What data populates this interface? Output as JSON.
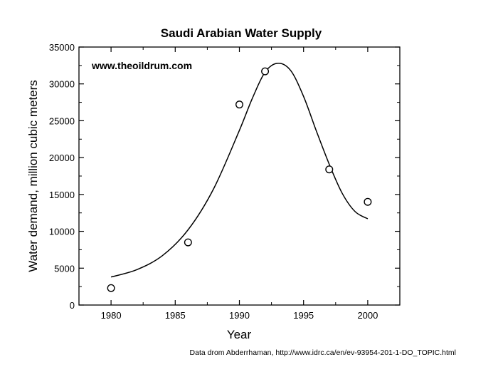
{
  "chart_data": {
    "type": "scatter",
    "title": "Saudi Arabian Water Supply",
    "xlabel": "Year",
    "ylabel": "Water demand, million cubic meters",
    "xlim": [
      1977.5,
      2002.5
    ],
    "ylim": [
      0,
      35000
    ],
    "x_ticks": [
      1980,
      1985,
      1990,
      1995,
      2000
    ],
    "y_ticks": [
      0,
      5000,
      10000,
      15000,
      20000,
      25000,
      30000,
      35000
    ],
    "grid": false,
    "annotation": "www.theoildrum.com",
    "series": [
      {
        "kind": "points",
        "marker": "open-circle",
        "x": [
          1980,
          1986,
          1990,
          1992,
          1997,
          2000
        ],
        "y": [
          2300,
          8500,
          27200,
          31700,
          18400,
          14000
        ]
      },
      {
        "kind": "fitted-curve",
        "x": [
          1980,
          1982,
          1984,
          1986,
          1988,
          1990,
          1991,
          1992,
          1993,
          1994,
          1995,
          1996,
          1997,
          1998,
          1999,
          2000
        ],
        "y": [
          3800,
          4800,
          6700,
          10200,
          15800,
          23700,
          28000,
          31600,
          32800,
          31800,
          28300,
          23600,
          19100,
          15200,
          12700,
          11700
        ]
      }
    ]
  },
  "footer": {
    "source_note": "Data drom Abderrhaman, http://www.idrc.ca/en/ev-93954-201-1-DO_TOPIC.html"
  }
}
